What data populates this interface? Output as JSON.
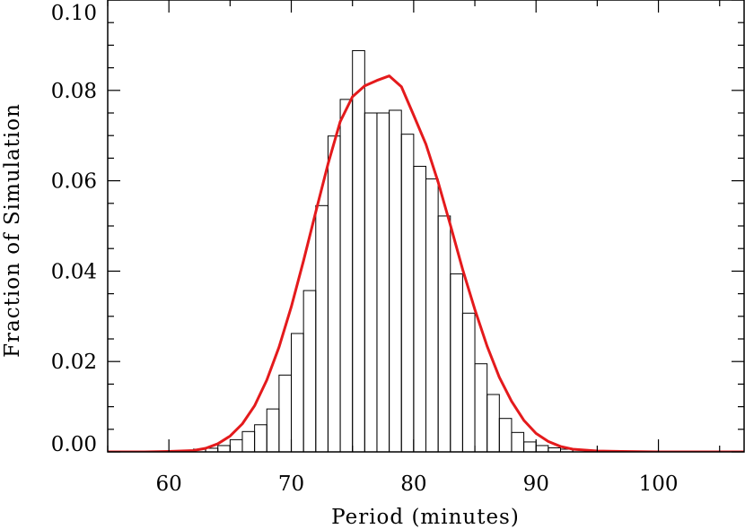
{
  "chart_data": {
    "type": "line",
    "title": "",
    "xlabel": "Period (minutes)",
    "ylabel": "Fraction of Simulation",
    "xlim": [
      55,
      107
    ],
    "ylim": [
      0,
      0.1
    ],
    "grid": false,
    "legend": "none",
    "x_ticks": [
      {
        "value": 60,
        "label": "60"
      },
      {
        "value": 70,
        "label": "70"
      },
      {
        "value": 80,
        "label": "80"
      },
      {
        "value": 90,
        "label": "90"
      },
      {
        "value": 100,
        "label": "100"
      }
    ],
    "y_ticks": [
      {
        "value": 0.0,
        "label": "0.00"
      },
      {
        "value": 0.02,
        "label": "0.02"
      },
      {
        "value": 0.04,
        "label": "0.04"
      },
      {
        "value": 0.06,
        "label": "0.06"
      },
      {
        "value": 0.08,
        "label": "0.08"
      },
      {
        "value": 0.1,
        "label": "0.10"
      }
    ],
    "series": [
      {
        "kind": "histogram",
        "color": "#000000",
        "bin_width": 1,
        "bin_starts": [
          60,
          61,
          62,
          63,
          64,
          65,
          66,
          67,
          68,
          69,
          70,
          71,
          72,
          73,
          74,
          75,
          76,
          77,
          78,
          79,
          80,
          81,
          82,
          83,
          84,
          85,
          86,
          87,
          88,
          89,
          90,
          91,
          92,
          93,
          94,
          95,
          96,
          97,
          98
        ],
        "values": [
          0.0003,
          0.0003,
          0.0006,
          0.0008,
          0.0014,
          0.0027,
          0.0045,
          0.006,
          0.0095,
          0.017,
          0.0262,
          0.0357,
          0.0545,
          0.0699,
          0.078,
          0.0888,
          0.075,
          0.075,
          0.0756,
          0.0703,
          0.0632,
          0.0604,
          0.0522,
          0.0394,
          0.0307,
          0.0195,
          0.0127,
          0.0074,
          0.0043,
          0.0022,
          0.0014,
          0.0009,
          0.0006,
          0.0004,
          0.0003,
          0.0002,
          0.0002,
          0.0001,
          0.0001
        ]
      },
      {
        "kind": "line",
        "color": "#e41a1c",
        "x": [
          55,
          58,
          60,
          62,
          63,
          64,
          65,
          66,
          67,
          68,
          69,
          70,
          71,
          72,
          73,
          74,
          75,
          76,
          77,
          78,
          79,
          80,
          81,
          82,
          83,
          84,
          85,
          86,
          87,
          88,
          89,
          90,
          91,
          92,
          93,
          95,
          97,
          100,
          107
        ],
        "y": [
          0.0,
          0.0,
          0.0001,
          0.0003,
          0.0008,
          0.0018,
          0.0035,
          0.0062,
          0.0102,
          0.0159,
          0.0232,
          0.0321,
          0.0423,
          0.0531,
          0.0637,
          0.0731,
          0.0786,
          0.081,
          0.0822,
          0.0832,
          0.0808,
          0.0745,
          0.0681,
          0.0597,
          0.0502,
          0.0404,
          0.0315,
          0.0234,
          0.0165,
          0.0112,
          0.007,
          0.0041,
          0.0023,
          0.0012,
          0.0006,
          0.0002,
          0.0001,
          0.0,
          0.0
        ]
      }
    ]
  }
}
